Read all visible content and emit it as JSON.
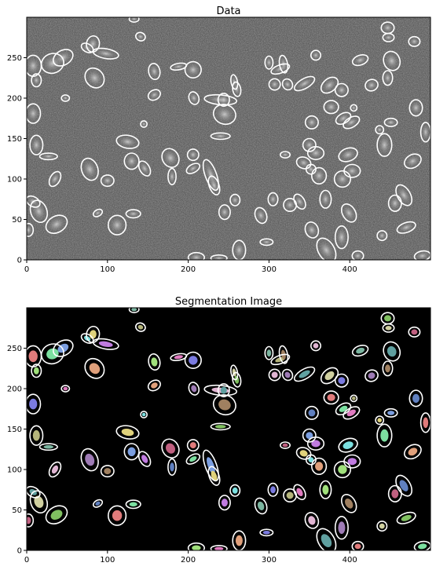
{
  "chart_data": [
    {
      "type": "heatmap",
      "title": "Data",
      "xlabel": "",
      "ylabel": "",
      "xlim": [
        0,
        500
      ],
      "ylim": [
        0,
        300
      ],
      "x_ticks": [
        0,
        100,
        200,
        300,
        400
      ],
      "y_ticks": [
        0,
        50,
        100,
        150,
        200,
        250
      ],
      "colormap": "gray",
      "aperture_color": "#ffffff",
      "apertures": [
        {
          "x": 8,
          "y": 240,
          "a": 10,
          "b": 13,
          "rot": 0
        },
        {
          "x": 32,
          "y": 243,
          "a": 14,
          "b": 12,
          "rot": 20
        },
        {
          "x": 45,
          "y": 250,
          "a": 13,
          "b": 9,
          "rot": 30
        },
        {
          "x": 82,
          "y": 267,
          "a": 10,
          "b": 8,
          "rot": 80
        },
        {
          "x": 98,
          "y": 255,
          "a": 16,
          "b": 6,
          "rot": -10
        },
        {
          "x": 75,
          "y": 262,
          "a": 8,
          "b": 5,
          "rot": -30
        },
        {
          "x": 84,
          "y": 225,
          "a": 11,
          "b": 13,
          "rot": 40
        },
        {
          "x": 12,
          "y": 222,
          "a": 6,
          "b": 8,
          "rot": 0
        },
        {
          "x": 48,
          "y": 200,
          "a": 5,
          "b": 4,
          "rot": 0
        },
        {
          "x": 8,
          "y": 181,
          "a": 9,
          "b": 12,
          "rot": 0
        },
        {
          "x": 12,
          "y": 142,
          "a": 8,
          "b": 12,
          "rot": 0
        },
        {
          "x": 27,
          "y": 128,
          "a": 11,
          "b": 4,
          "rot": 0
        },
        {
          "x": 35,
          "y": 100,
          "a": 10,
          "b": 6,
          "rot": 60
        },
        {
          "x": 78,
          "y": 112,
          "a": 10,
          "b": 14,
          "rot": 20
        },
        {
          "x": 100,
          "y": 98,
          "a": 8,
          "b": 7,
          "rot": 0
        },
        {
          "x": 8,
          "y": 72,
          "a": 9,
          "b": 6,
          "rot": -30
        },
        {
          "x": 15,
          "y": 60,
          "a": 10,
          "b": 14,
          "rot": 20
        },
        {
          "x": 37,
          "y": 44,
          "a": 14,
          "b": 10,
          "rot": 30
        },
        {
          "x": 2,
          "y": 37,
          "a": 6,
          "b": 8,
          "rot": 0
        },
        {
          "x": 88,
          "y": 58,
          "a": 6,
          "b": 4,
          "rot": 30
        },
        {
          "x": 112,
          "y": 43,
          "a": 11,
          "b": 12,
          "rot": 0
        },
        {
          "x": 132,
          "y": 57,
          "a": 9,
          "b": 5,
          "rot": 0
        },
        {
          "x": 130,
          "y": 122,
          "a": 9,
          "b": 10,
          "rot": 0
        },
        {
          "x": 125,
          "y": 146,
          "a": 8,
          "b": 14,
          "rot": 80
        },
        {
          "x": 146,
          "y": 113,
          "a": 6,
          "b": 10,
          "rot": 30
        },
        {
          "x": 145,
          "y": 168,
          "a": 4,
          "b": 4,
          "rot": 0
        },
        {
          "x": 158,
          "y": 204,
          "a": 8,
          "b": 6,
          "rot": 30
        },
        {
          "x": 158,
          "y": 233,
          "a": 7,
          "b": 10,
          "rot": 10
        },
        {
          "x": 188,
          "y": 239,
          "a": 10,
          "b": 4,
          "rot": 10
        },
        {
          "x": 206,
          "y": 235,
          "a": 10,
          "b": 10,
          "rot": 0
        },
        {
          "x": 141,
          "y": 276,
          "a": 6,
          "b": 5,
          "rot": -20
        },
        {
          "x": 133,
          "y": 298,
          "a": 6,
          "b": 4,
          "rot": 0
        },
        {
          "x": 240,
          "y": 198,
          "a": 20,
          "b": 6,
          "rot": -5
        },
        {
          "x": 207,
          "y": 200,
          "a": 6,
          "b": 8,
          "rot": 20
        },
        {
          "x": 245,
          "y": 180,
          "a": 14,
          "b": 12,
          "rot": -20
        },
        {
          "x": 244,
          "y": 198,
          "a": 7,
          "b": 8,
          "rot": 0
        },
        {
          "x": 257,
          "y": 220,
          "a": 4,
          "b": 9,
          "rot": 10
        },
        {
          "x": 240,
          "y": 153,
          "a": 12,
          "b": 4,
          "rot": 0
        },
        {
          "x": 178,
          "y": 126,
          "a": 10,
          "b": 12,
          "rot": 30
        },
        {
          "x": 180,
          "y": 103,
          "a": 5,
          "b": 10,
          "rot": 0
        },
        {
          "x": 206,
          "y": 130,
          "a": 7,
          "b": 7,
          "rot": 0
        },
        {
          "x": 206,
          "y": 113,
          "a": 9,
          "b": 5,
          "rot": 30
        },
        {
          "x": 228,
          "y": 105,
          "a": 7,
          "b": 20,
          "rot": 20
        },
        {
          "x": 232,
          "y": 92,
          "a": 6,
          "b": 12,
          "rot": 20
        },
        {
          "x": 245,
          "y": 59,
          "a": 7,
          "b": 9,
          "rot": 0
        },
        {
          "x": 258,
          "y": 74,
          "a": 6,
          "b": 7,
          "rot": 0
        },
        {
          "x": 263,
          "y": 12,
          "a": 8,
          "b": 12,
          "rot": 0
        },
        {
          "x": 210,
          "y": 3,
          "a": 10,
          "b": 6,
          "rot": 0
        },
        {
          "x": 238,
          "y": 2,
          "a": 10,
          "b": 4,
          "rot": 0
        },
        {
          "x": 297,
          "y": 22,
          "a": 8,
          "b": 4,
          "rot": 0
        },
        {
          "x": 314,
          "y": 236,
          "a": 12,
          "b": 5,
          "rot": 20
        },
        {
          "x": 300,
          "y": 244,
          "a": 5,
          "b": 8,
          "rot": 0
        },
        {
          "x": 307,
          "y": 217,
          "a": 7,
          "b": 7,
          "rot": 0
        },
        {
          "x": 323,
          "y": 217,
          "a": 6,
          "b": 7,
          "rot": 30
        },
        {
          "x": 318,
          "y": 242,
          "a": 5,
          "b": 11,
          "rot": 10
        },
        {
          "x": 344,
          "y": 218,
          "a": 14,
          "b": 6,
          "rot": 30
        },
        {
          "x": 375,
          "y": 216,
          "a": 12,
          "b": 8,
          "rot": 40
        },
        {
          "x": 260,
          "y": 211,
          "a": 5,
          "b": 9,
          "rot": 10
        },
        {
          "x": 320,
          "y": 130,
          "a": 6,
          "b": 4,
          "rot": 0
        },
        {
          "x": 353,
          "y": 170,
          "a": 8,
          "b": 8,
          "rot": 0
        },
        {
          "x": 377,
          "y": 189,
          "a": 9,
          "b": 8,
          "rot": 0
        },
        {
          "x": 392,
          "y": 175,
          "a": 10,
          "b": 6,
          "rot": 30
        },
        {
          "x": 350,
          "y": 142,
          "a": 8,
          "b": 8,
          "rot": 0
        },
        {
          "x": 343,
          "y": 120,
          "a": 9,
          "b": 7,
          "rot": -20
        },
        {
          "x": 358,
          "y": 132,
          "a": 10,
          "b": 8,
          "rot": 0
        },
        {
          "x": 352,
          "y": 112,
          "a": 6,
          "b": 6,
          "rot": 0
        },
        {
          "x": 362,
          "y": 104,
          "a": 9,
          "b": 10,
          "rot": 0
        },
        {
          "x": 391,
          "y": 100,
          "a": 10,
          "b": 10,
          "rot": 0
        },
        {
          "x": 402,
          "y": 170,
          "a": 11,
          "b": 6,
          "rot": 30
        },
        {
          "x": 390,
          "y": 210,
          "a": 8,
          "b": 8,
          "rot": 0
        },
        {
          "x": 405,
          "y": 188,
          "a": 4,
          "b": 4,
          "rot": 0
        },
        {
          "x": 413,
          "y": 247,
          "a": 10,
          "b": 6,
          "rot": 20
        },
        {
          "x": 358,
          "y": 253,
          "a": 6,
          "b": 6,
          "rot": 0
        },
        {
          "x": 427,
          "y": 216,
          "a": 8,
          "b": 7,
          "rot": 20
        },
        {
          "x": 447,
          "y": 225,
          "a": 6,
          "b": 9,
          "rot": 0
        },
        {
          "x": 452,
          "y": 246,
          "a": 10,
          "b": 12,
          "rot": 20
        },
        {
          "x": 448,
          "y": 275,
          "a": 7,
          "b": 5,
          "rot": 0
        },
        {
          "x": 447,
          "y": 287,
          "a": 8,
          "b": 7,
          "rot": 0
        },
        {
          "x": 480,
          "y": 270,
          "a": 7,
          "b": 6,
          "rot": 0
        },
        {
          "x": 482,
          "y": 188,
          "a": 8,
          "b": 10,
          "rot": 0
        },
        {
          "x": 494,
          "y": 158,
          "a": 6,
          "b": 12,
          "rot": 0
        },
        {
          "x": 443,
          "y": 142,
          "a": 9,
          "b": 14,
          "rot": 0
        },
        {
          "x": 451,
          "y": 170,
          "a": 8,
          "b": 5,
          "rot": 0
        },
        {
          "x": 437,
          "y": 161,
          "a": 5,
          "b": 5,
          "rot": 0
        },
        {
          "x": 403,
          "y": 110,
          "a": 10,
          "b": 8,
          "rot": 0
        },
        {
          "x": 398,
          "y": 130,
          "a": 12,
          "b": 8,
          "rot": 20
        },
        {
          "x": 478,
          "y": 122,
          "a": 11,
          "b": 8,
          "rot": 30
        },
        {
          "x": 370,
          "y": 75,
          "a": 7,
          "b": 11,
          "rot": 0
        },
        {
          "x": 338,
          "y": 72,
          "a": 6,
          "b": 10,
          "rot": 30
        },
        {
          "x": 305,
          "y": 75,
          "a": 6,
          "b": 8,
          "rot": 0
        },
        {
          "x": 326,
          "y": 68,
          "a": 8,
          "b": 8,
          "rot": 0
        },
        {
          "x": 290,
          "y": 55,
          "a": 7,
          "b": 10,
          "rot": 20
        },
        {
          "x": 353,
          "y": 37,
          "a": 8,
          "b": 10,
          "rot": 20
        },
        {
          "x": 390,
          "y": 28,
          "a": 8,
          "b": 14,
          "rot": 0
        },
        {
          "x": 399,
          "y": 58,
          "a": 8,
          "b": 12,
          "rot": 30
        },
        {
          "x": 371,
          "y": 12,
          "a": 10,
          "b": 16,
          "rot": 30
        },
        {
          "x": 440,
          "y": 30,
          "a": 6,
          "b": 6,
          "rot": 0
        },
        {
          "x": 470,
          "y": 40,
          "a": 12,
          "b": 6,
          "rot": 20
        },
        {
          "x": 456,
          "y": 70,
          "a": 8,
          "b": 10,
          "rot": 0
        },
        {
          "x": 467,
          "y": 80,
          "a": 8,
          "b": 14,
          "rot": 30
        },
        {
          "x": 410,
          "y": 5,
          "a": 7,
          "b": 6,
          "rot": 0
        },
        {
          "x": 490,
          "y": 5,
          "a": 10,
          "b": 6,
          "rot": 10
        }
      ]
    },
    {
      "type": "heatmap",
      "title": "Segmentation Image",
      "xlabel": "",
      "ylabel": "",
      "xlim": [
        0,
        500
      ],
      "ylim": [
        0,
        300
      ],
      "x_ticks": [
        0,
        100,
        200,
        300,
        400
      ],
      "y_ticks": [
        0,
        50,
        100,
        150,
        200,
        250
      ],
      "colormap": "random labels on black",
      "aperture_color": "#ffffff"
    }
  ]
}
